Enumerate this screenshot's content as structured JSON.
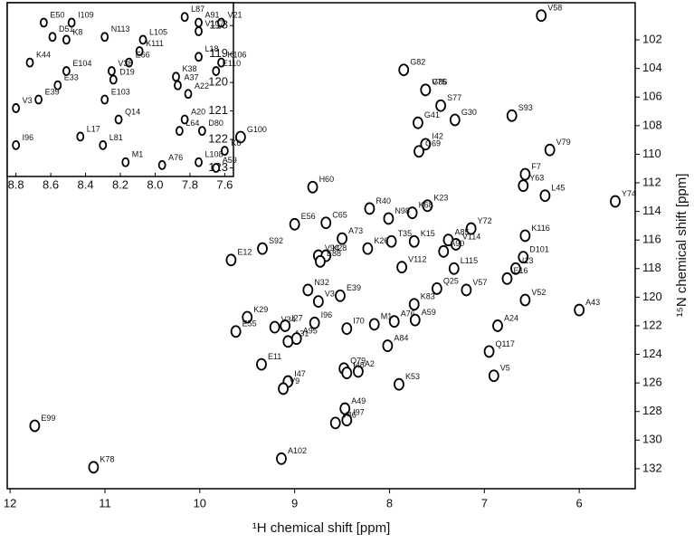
{
  "chart_data": [
    {
      "type": "scatter",
      "x_label": "¹H chemical shift [ppm]",
      "y_label": "¹⁵N chemical shift [ppm]",
      "xlim": [
        12.03,
        5.41
      ],
      "ylim": [
        99.4,
        133.4
      ],
      "xticks": [
        12,
        11,
        10,
        9,
        8,
        7,
        6
      ],
      "yticks": [
        102,
        104,
        106,
        108,
        110,
        112,
        114,
        116,
        118,
        120,
        122,
        124,
        126,
        128,
        130,
        132
      ],
      "grid": false,
      "color": "#000000",
      "point_labels": [
        "V58",
        "G82",
        "G86",
        "V75",
        "S77",
        "G30",
        "S93",
        "G41",
        "I42",
        "G69",
        "V79",
        "F7",
        "Y63",
        "L45",
        "Y74",
        "H60",
        "R40",
        "K23",
        "K68",
        "N98",
        "E56",
        "C65",
        "Y72",
        "K116",
        "T35",
        "A73",
        "K26",
        "K15",
        "A85",
        "V94",
        "K28",
        "E88",
        "S92",
        "V114",
        "A90",
        "V112",
        "D101",
        "E12",
        "L115",
        "I13",
        "E16",
        "N32",
        "E39",
        "V57",
        "Q25",
        "V52",
        "V3",
        "K83",
        "A43",
        "K29",
        "I27",
        "V34",
        "E55",
        "I96",
        "M1",
        "A76",
        "A59",
        "I70",
        "A24",
        "A31",
        "A95",
        "Q117",
        "A84",
        "E11",
        "Q79",
        "A2",
        "I48",
        "V5",
        "I47",
        "V9",
        "K53",
        "A49",
        "I97",
        "V46",
        "E99",
        "K78",
        "A102",
        "G100"
      ],
      "x": [
        6.4,
        7.85,
        7.62,
        7.62,
        7.46,
        7.31,
        6.71,
        7.7,
        7.62,
        7.69,
        6.31,
        6.57,
        6.59,
        6.36,
        5.62,
        8.81,
        8.21,
        7.6,
        7.76,
        8.01,
        9.0,
        8.67,
        7.14,
        6.57,
        7.98,
        8.5,
        8.23,
        7.74,
        7.38,
        8.75,
        8.67,
        8.73,
        9.34,
        7.3,
        7.43,
        7.87,
        6.59,
        9.67,
        7.32,
        6.67,
        6.76,
        8.86,
        8.52,
        7.19,
        7.5,
        6.57,
        8.75,
        7.74,
        6.0,
        9.5,
        9.1,
        9.21,
        9.62,
        8.79,
        8.16,
        7.95,
        7.73,
        8.45,
        6.86,
        9.07,
        8.98,
        6.95,
        8.02,
        9.35,
        8.48,
        8.33,
        8.45,
        6.9,
        9.07,
        9.12,
        7.9,
        8.47,
        8.45,
        8.57,
        11.74,
        11.12,
        9.14,
        9.57
      ],
      "values": [
        100.3,
        104.1,
        105.5,
        105.5,
        106.6,
        107.6,
        107.3,
        107.8,
        109.3,
        109.8,
        109.7,
        111.4,
        112.2,
        112.9,
        113.3,
        112.3,
        113.8,
        113.6,
        114.1,
        114.5,
        114.9,
        114.8,
        115.2,
        115.7,
        116.1,
        115.9,
        116.6,
        116.1,
        116.0,
        117.1,
        117.1,
        117.5,
        116.6,
        116.3,
        116.8,
        117.9,
        117.2,
        117.4,
        118.0,
        118.0,
        118.7,
        119.5,
        119.9,
        119.5,
        119.4,
        120.2,
        120.3,
        120.5,
        120.9,
        121.4,
        122.0,
        122.1,
        122.4,
        121.8,
        121.9,
        121.7,
        121.6,
        122.2,
        122.0,
        123.1,
        122.9,
        123.8,
        123.4,
        124.7,
        125.0,
        125.2,
        125.3,
        125.5,
        125.9,
        126.4,
        126.1,
        127.8,
        128.6,
        128.8,
        129.0,
        131.9,
        131.3,
        108.8
      ]
    },
    {
      "type": "scatter",
      "xlim": [
        8.85,
        7.55
      ],
      "ylim": [
        117.2,
        123.3
      ],
      "xticks": [
        8.8,
        8.6,
        8.4,
        8.2,
        {
          "value": 8,
          "label": "8.0"
        },
        7.8,
        7.6
      ],
      "yticks": [
        118,
        119,
        120,
        121,
        122,
        123
      ],
      "grid": false,
      "color": "#000000",
      "point_labels": [
        "E50",
        "I109",
        "D51",
        "K8",
        "N113",
        "L87",
        "A91",
        "V21",
        "V107",
        "L105",
        "K111",
        "E66",
        "V38",
        "D19",
        "L18",
        "K106",
        "E110",
        "K44",
        "E104",
        "E33",
        "K38",
        "A37",
        "A22",
        "E103",
        "E39",
        "V3",
        "Q14",
        "A20",
        "L64",
        "D80",
        "L17",
        "L81",
        "I96",
        "K6",
        "M1",
        "A76",
        "L108",
        "A59"
      ],
      "x": [
        8.64,
        8.48,
        8.59,
        8.51,
        8.29,
        7.83,
        7.75,
        7.62,
        7.75,
        8.07,
        8.09,
        8.15,
        8.25,
        8.24,
        7.75,
        7.62,
        7.65,
        8.72,
        8.51,
        8.56,
        7.88,
        7.87,
        7.81,
        8.29,
        8.67,
        8.8,
        8.21,
        7.83,
        7.86,
        7.73,
        8.43,
        8.3,
        8.8,
        7.6,
        8.17,
        7.96,
        7.75,
        7.65
      ],
      "values": [
        117.9,
        117.9,
        118.4,
        118.5,
        118.4,
        117.7,
        117.9,
        117.9,
        118.2,
        118.5,
        118.9,
        119.3,
        119.6,
        119.9,
        119.1,
        119.3,
        119.6,
        119.3,
        119.6,
        120.1,
        119.8,
        120.1,
        120.4,
        120.6,
        120.6,
        120.9,
        121.3,
        121.3,
        121.7,
        121.7,
        121.9,
        122.2,
        122.2,
        122.4,
        122.8,
        122.9,
        122.8,
        123.0
      ]
    }
  ]
}
